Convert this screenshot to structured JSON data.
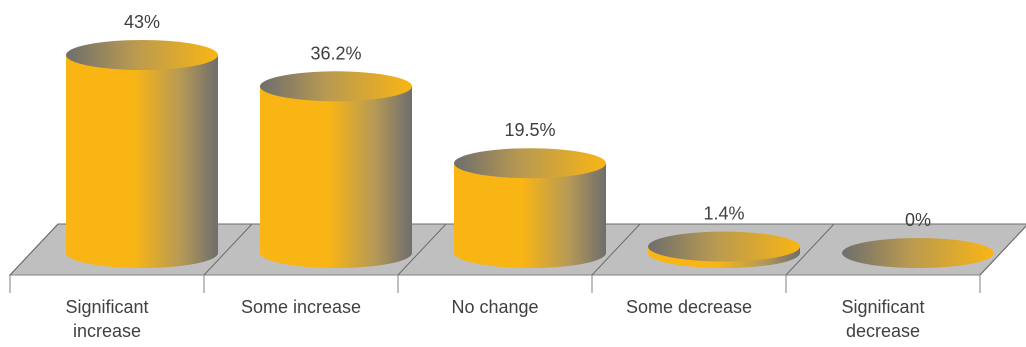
{
  "chart_data": {
    "type": "bar",
    "style": "3d-cylinder",
    "categories": [
      "Significant increase",
      "Some increase",
      "No change",
      "Some decrease",
      "Significant decrease"
    ],
    "category_lines": [
      [
        "Significant",
        "increase"
      ],
      [
        "Some increase"
      ],
      [
        "No change"
      ],
      [
        "Some decrease"
      ],
      [
        "Significant",
        "decrease"
      ]
    ],
    "values": [
      43,
      36.2,
      19.5,
      1.4,
      0
    ],
    "value_labels": [
      "43%",
      "36.2%",
      "19.5%",
      "1.4%",
      "0%"
    ],
    "ylim": [
      0,
      43
    ],
    "grid": false,
    "legend": "none",
    "colors": {
      "bar_main": "#F9B514",
      "bar_dark": "#6E6E6E",
      "floor": "#BFBFBF",
      "floor_edge": "#6B6B6B",
      "label": "#404040",
      "axis": "#808080"
    }
  }
}
